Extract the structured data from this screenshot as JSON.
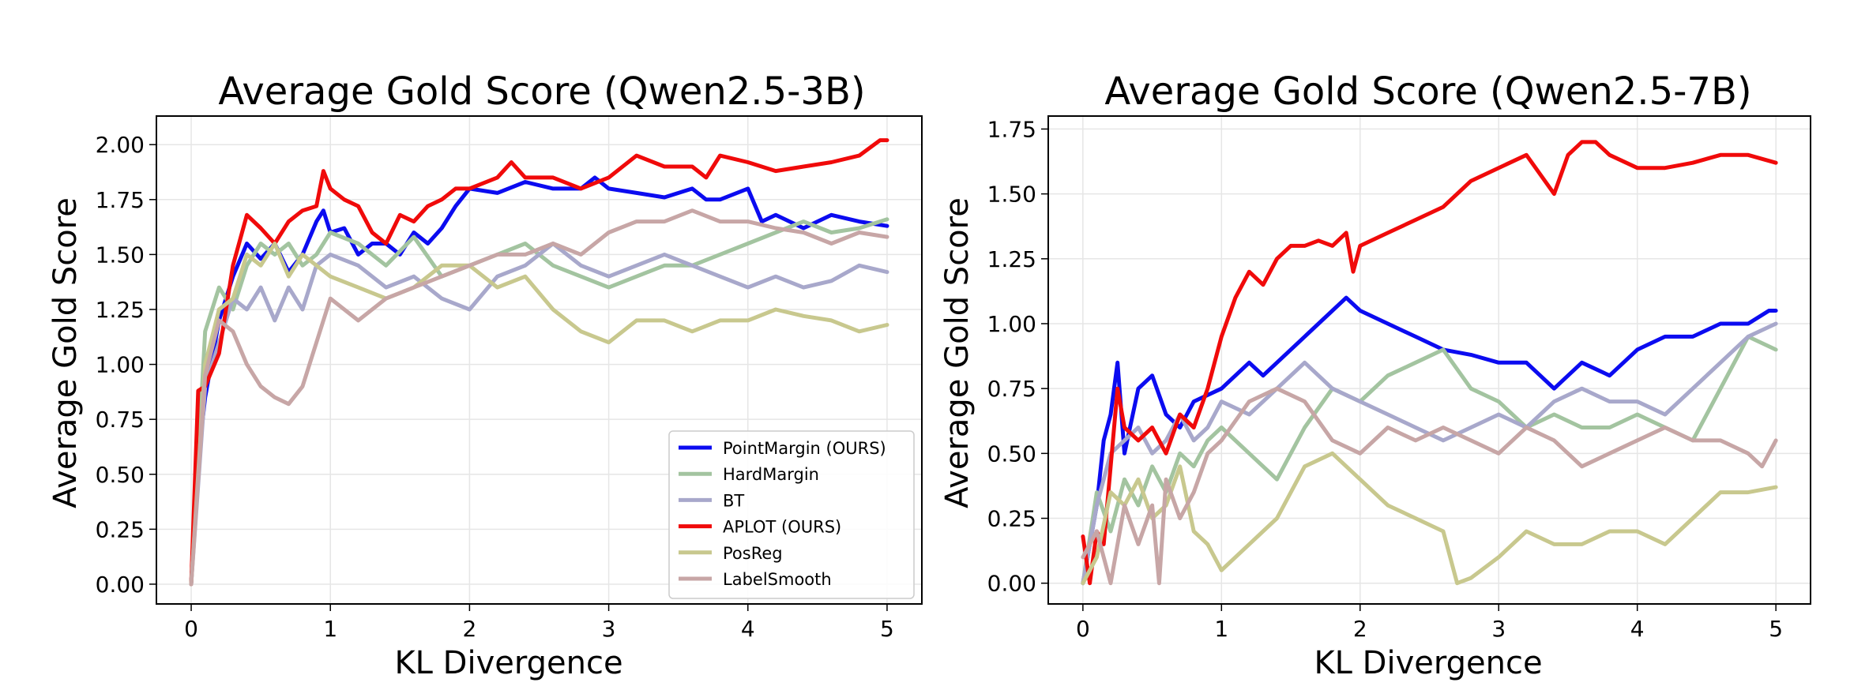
{
  "colors": {
    "PointMargin (OURS)": "#0b0bf0",
    "HardMargin": "#a3c4a0",
    "BT": "#a8a8cb",
    "APLOT (OURS)": "#f00a0a",
    "PosReg": "#c8c88e",
    "LabelSmooth": "#c7a6a6"
  },
  "chart_data": [
    {
      "type": "line",
      "title": "Average Gold Score (Qwen2.5-3B)",
      "xlabel": "KL Divergence",
      "ylabel": "Average Gold Score",
      "xlim": [
        -0.25,
        5.25
      ],
      "ylim": [
        -0.09,
        2.13
      ],
      "xticks": [
        "0",
        "1",
        "2",
        "3",
        "4",
        "5"
      ],
      "yticks": [
        "0.00",
        "0.25",
        "0.50",
        "0.75",
        "1.00",
        "1.25",
        "1.50",
        "1.75",
        "2.00"
      ],
      "grid": true,
      "legend": "lower right",
      "legend_entries": [
        "PointMargin (OURS)",
        "HardMargin",
        "BT",
        "APLOT (OURS)",
        "PosReg",
        "LabelSmooth"
      ],
      "series": [
        {
          "name": "PointMargin (OURS)",
          "x": [
            0.0,
            0.05,
            0.1,
            0.2,
            0.3,
            0.4,
            0.5,
            0.6,
            0.7,
            0.8,
            0.9,
            0.95,
            1.0,
            1.1,
            1.2,
            1.3,
            1.4,
            1.5,
            1.6,
            1.7,
            1.8,
            1.9,
            2.0,
            2.2,
            2.4,
            2.6,
            2.8,
            2.9,
            3.0,
            3.2,
            3.4,
            3.6,
            3.7,
            3.8,
            4.0,
            4.1,
            4.2,
            4.4,
            4.6,
            4.8,
            5.0
          ],
          "y": [
            0.0,
            0.57,
            0.85,
            1.2,
            1.4,
            1.55,
            1.48,
            1.55,
            1.42,
            1.5,
            1.65,
            1.7,
            1.6,
            1.62,
            1.5,
            1.55,
            1.55,
            1.5,
            1.6,
            1.55,
            1.62,
            1.72,
            1.8,
            1.78,
            1.83,
            1.8,
            1.8,
            1.85,
            1.8,
            1.78,
            1.76,
            1.8,
            1.75,
            1.75,
            1.8,
            1.65,
            1.68,
            1.62,
            1.68,
            1.65,
            1.63
          ]
        },
        {
          "name": "HardMargin",
          "x": [
            0.0,
            0.1,
            0.2,
            0.3,
            0.4,
            0.5,
            0.6,
            0.7,
            0.8,
            0.9,
            1.0,
            1.2,
            1.4,
            1.6,
            1.8,
            2.0,
            2.2,
            2.4,
            2.6,
            2.8,
            3.0,
            3.2,
            3.4,
            3.6,
            3.8,
            4.0,
            4.2,
            4.4,
            4.6,
            4.8,
            5.0
          ],
          "y": [
            0.0,
            1.15,
            1.35,
            1.25,
            1.45,
            1.55,
            1.5,
            1.55,
            1.45,
            1.5,
            1.6,
            1.55,
            1.45,
            1.58,
            1.4,
            1.45,
            1.5,
            1.55,
            1.45,
            1.4,
            1.35,
            1.4,
            1.45,
            1.45,
            1.5,
            1.55,
            1.6,
            1.65,
            1.6,
            1.62,
            1.66
          ]
        },
        {
          "name": "BT",
          "x": [
            0.0,
            0.1,
            0.2,
            0.3,
            0.4,
            0.5,
            0.6,
            0.7,
            0.8,
            0.9,
            1.0,
            1.2,
            1.4,
            1.6,
            1.8,
            2.0,
            2.2,
            2.4,
            2.6,
            2.8,
            3.0,
            3.2,
            3.4,
            3.6,
            3.8,
            4.0,
            4.2,
            4.4,
            4.6,
            4.8,
            5.0
          ],
          "y": [
            0.0,
            0.9,
            1.1,
            1.3,
            1.25,
            1.35,
            1.2,
            1.35,
            1.25,
            1.45,
            1.5,
            1.45,
            1.35,
            1.4,
            1.3,
            1.25,
            1.4,
            1.45,
            1.55,
            1.45,
            1.4,
            1.45,
            1.5,
            1.45,
            1.4,
            1.35,
            1.4,
            1.35,
            1.38,
            1.45,
            1.42
          ]
        },
        {
          "name": "APLOT (OURS)",
          "x": [
            0.0,
            0.05,
            0.1,
            0.2,
            0.3,
            0.4,
            0.5,
            0.6,
            0.7,
            0.8,
            0.9,
            0.95,
            1.0,
            1.1,
            1.2,
            1.3,
            1.4,
            1.5,
            1.6,
            1.7,
            1.8,
            1.9,
            2.0,
            2.2,
            2.3,
            2.4,
            2.6,
            2.8,
            3.0,
            3.2,
            3.4,
            3.6,
            3.7,
            3.8,
            4.0,
            4.2,
            4.4,
            4.6,
            4.8,
            4.95,
            5.0
          ],
          "y": [
            0.0,
            0.88,
            0.9,
            1.05,
            1.45,
            1.68,
            1.62,
            1.55,
            1.65,
            1.7,
            1.72,
            1.88,
            1.8,
            1.75,
            1.72,
            1.6,
            1.55,
            1.68,
            1.65,
            1.72,
            1.75,
            1.8,
            1.8,
            1.85,
            1.92,
            1.85,
            1.85,
            1.8,
            1.85,
            1.95,
            1.9,
            1.9,
            1.85,
            1.95,
            1.92,
            1.88,
            1.9,
            1.92,
            1.95,
            2.02,
            2.02
          ]
        },
        {
          "name": "PosReg",
          "x": [
            0.0,
            0.1,
            0.2,
            0.3,
            0.4,
            0.5,
            0.6,
            0.7,
            0.8,
            0.9,
            1.0,
            1.2,
            1.4,
            1.6,
            1.8,
            2.0,
            2.2,
            2.4,
            2.6,
            2.8,
            3.0,
            3.2,
            3.4,
            3.6,
            3.8,
            4.0,
            4.2,
            4.4,
            4.6,
            4.8,
            5.0
          ],
          "y": [
            0.0,
            1.0,
            1.25,
            1.3,
            1.5,
            1.45,
            1.55,
            1.4,
            1.5,
            1.45,
            1.4,
            1.35,
            1.3,
            1.35,
            1.45,
            1.45,
            1.35,
            1.4,
            1.25,
            1.15,
            1.1,
            1.2,
            1.2,
            1.15,
            1.2,
            1.2,
            1.25,
            1.22,
            1.2,
            1.15,
            1.18
          ]
        },
        {
          "name": "LabelSmooth",
          "x": [
            0.0,
            0.1,
            0.2,
            0.3,
            0.4,
            0.5,
            0.6,
            0.7,
            0.8,
            0.9,
            1.0,
            1.2,
            1.4,
            1.6,
            1.8,
            2.0,
            2.2,
            2.4,
            2.6,
            2.8,
            3.0,
            3.2,
            3.4,
            3.6,
            3.8,
            4.0,
            4.2,
            4.4,
            4.6,
            4.8,
            5.0
          ],
          "y": [
            0.0,
            0.95,
            1.2,
            1.15,
            1.0,
            0.9,
            0.85,
            0.82,
            0.9,
            1.1,
            1.3,
            1.2,
            1.3,
            1.35,
            1.4,
            1.45,
            1.5,
            1.5,
            1.55,
            1.5,
            1.6,
            1.65,
            1.65,
            1.7,
            1.65,
            1.65,
            1.62,
            1.6,
            1.55,
            1.6,
            1.58
          ]
        }
      ]
    },
    {
      "type": "line",
      "title": "Average Gold Score (Qwen2.5-7B)",
      "xlabel": "KL Divergence",
      "ylabel": "Average Gold Score",
      "xlim": [
        -0.25,
        5.25
      ],
      "ylim": [
        -0.08,
        1.8
      ],
      "xticks": [
        "0",
        "1",
        "2",
        "3",
        "4",
        "5"
      ],
      "yticks": [
        "0.00",
        "0.25",
        "0.50",
        "0.75",
        "1.00",
        "1.25",
        "1.50",
        "1.75"
      ],
      "grid": true,
      "series": [
        {
          "name": "PointMargin (OURS)",
          "x": [
            0.0,
            0.1,
            0.15,
            0.2,
            0.25,
            0.3,
            0.4,
            0.5,
            0.6,
            0.7,
            0.8,
            1.0,
            1.2,
            1.3,
            1.5,
            1.6,
            1.7,
            1.8,
            1.9,
            2.0,
            2.2,
            2.4,
            2.6,
            2.8,
            3.0,
            3.2,
            3.4,
            3.6,
            3.8,
            4.0,
            4.2,
            4.4,
            4.6,
            4.8,
            4.95,
            5.0
          ],
          "y": [
            0.0,
            0.3,
            0.55,
            0.65,
            0.85,
            0.5,
            0.75,
            0.8,
            0.65,
            0.6,
            0.7,
            0.75,
            0.85,
            0.8,
            0.9,
            0.95,
            1.0,
            1.05,
            1.1,
            1.05,
            1.0,
            0.95,
            0.9,
            0.88,
            0.85,
            0.85,
            0.75,
            0.85,
            0.8,
            0.9,
            0.95,
            0.95,
            1.0,
            1.0,
            1.05,
            1.05
          ]
        },
        {
          "name": "HardMargin",
          "x": [
            0.0,
            0.1,
            0.2,
            0.3,
            0.4,
            0.5,
            0.6,
            0.7,
            0.8,
            0.9,
            1.0,
            1.2,
            1.4,
            1.6,
            1.8,
            2.0,
            2.2,
            2.4,
            2.6,
            2.8,
            3.0,
            3.2,
            3.4,
            3.6,
            3.8,
            4.0,
            4.2,
            4.4,
            4.6,
            4.8,
            5.0
          ],
          "y": [
            0.0,
            0.35,
            0.2,
            0.4,
            0.3,
            0.45,
            0.35,
            0.5,
            0.45,
            0.55,
            0.6,
            0.5,
            0.4,
            0.6,
            0.75,
            0.7,
            0.8,
            0.85,
            0.9,
            0.75,
            0.7,
            0.6,
            0.65,
            0.6,
            0.6,
            0.65,
            0.6,
            0.55,
            0.75,
            0.95,
            0.9
          ]
        },
        {
          "name": "BT",
          "x": [
            0.0,
            0.1,
            0.2,
            0.3,
            0.4,
            0.5,
            0.6,
            0.7,
            0.8,
            0.9,
            1.0,
            1.2,
            1.4,
            1.6,
            1.8,
            2.0,
            2.2,
            2.4,
            2.6,
            2.8,
            3.0,
            3.2,
            3.4,
            3.6,
            3.8,
            4.0,
            4.2,
            4.4,
            4.6,
            4.8,
            5.0
          ],
          "y": [
            0.0,
            0.3,
            0.5,
            0.55,
            0.6,
            0.5,
            0.55,
            0.65,
            0.55,
            0.6,
            0.7,
            0.65,
            0.75,
            0.85,
            0.75,
            0.7,
            0.65,
            0.6,
            0.55,
            0.6,
            0.65,
            0.6,
            0.7,
            0.75,
            0.7,
            0.7,
            0.65,
            0.75,
            0.85,
            0.95,
            1.0
          ]
        },
        {
          "name": "APLOT (OURS)",
          "x": [
            0.0,
            0.05,
            0.1,
            0.15,
            0.2,
            0.25,
            0.3,
            0.4,
            0.5,
            0.6,
            0.7,
            0.8,
            0.9,
            1.0,
            1.1,
            1.2,
            1.3,
            1.4,
            1.5,
            1.6,
            1.7,
            1.8,
            1.9,
            1.95,
            2.0,
            2.2,
            2.4,
            2.6,
            2.8,
            3.0,
            3.2,
            3.4,
            3.5,
            3.6,
            3.7,
            3.8,
            4.0,
            4.2,
            4.4,
            4.6,
            4.8,
            5.0
          ],
          "y": [
            0.18,
            0.0,
            0.2,
            0.15,
            0.45,
            0.75,
            0.6,
            0.55,
            0.6,
            0.5,
            0.65,
            0.6,
            0.75,
            0.95,
            1.1,
            1.2,
            1.15,
            1.25,
            1.3,
            1.3,
            1.32,
            1.3,
            1.35,
            1.2,
            1.3,
            1.35,
            1.4,
            1.45,
            1.55,
            1.6,
            1.65,
            1.5,
            1.65,
            1.7,
            1.7,
            1.65,
            1.6,
            1.6,
            1.62,
            1.65,
            1.65,
            1.62
          ]
        },
        {
          "name": "PosReg",
          "x": [
            0.0,
            0.1,
            0.2,
            0.3,
            0.4,
            0.5,
            0.6,
            0.7,
            0.8,
            0.9,
            1.0,
            1.2,
            1.4,
            1.6,
            1.8,
            2.0,
            2.2,
            2.4,
            2.6,
            2.7,
            2.8,
            3.0,
            3.2,
            3.4,
            3.6,
            3.8,
            4.0,
            4.2,
            4.4,
            4.6,
            4.8,
            5.0
          ],
          "y": [
            0.0,
            0.1,
            0.35,
            0.3,
            0.4,
            0.25,
            0.3,
            0.45,
            0.2,
            0.15,
            0.05,
            0.15,
            0.25,
            0.45,
            0.5,
            0.4,
            0.3,
            0.25,
            0.2,
            0.0,
            0.02,
            0.1,
            0.2,
            0.15,
            0.15,
            0.2,
            0.2,
            0.15,
            0.25,
            0.35,
            0.35,
            0.37
          ]
        },
        {
          "name": "LabelSmooth",
          "x": [
            0.0,
            0.1,
            0.2,
            0.3,
            0.4,
            0.5,
            0.55,
            0.6,
            0.7,
            0.8,
            0.9,
            1.0,
            1.2,
            1.4,
            1.6,
            1.8,
            2.0,
            2.2,
            2.4,
            2.6,
            2.8,
            3.0,
            3.2,
            3.4,
            3.6,
            3.8,
            4.0,
            4.2,
            4.4,
            4.6,
            4.8,
            4.9,
            5.0
          ],
          "y": [
            0.1,
            0.2,
            0.0,
            0.3,
            0.15,
            0.3,
            0.0,
            0.4,
            0.25,
            0.35,
            0.5,
            0.55,
            0.7,
            0.75,
            0.7,
            0.55,
            0.5,
            0.6,
            0.55,
            0.6,
            0.55,
            0.5,
            0.6,
            0.55,
            0.45,
            0.5,
            0.55,
            0.6,
            0.55,
            0.55,
            0.5,
            0.45,
            0.55
          ]
        }
      ]
    }
  ]
}
